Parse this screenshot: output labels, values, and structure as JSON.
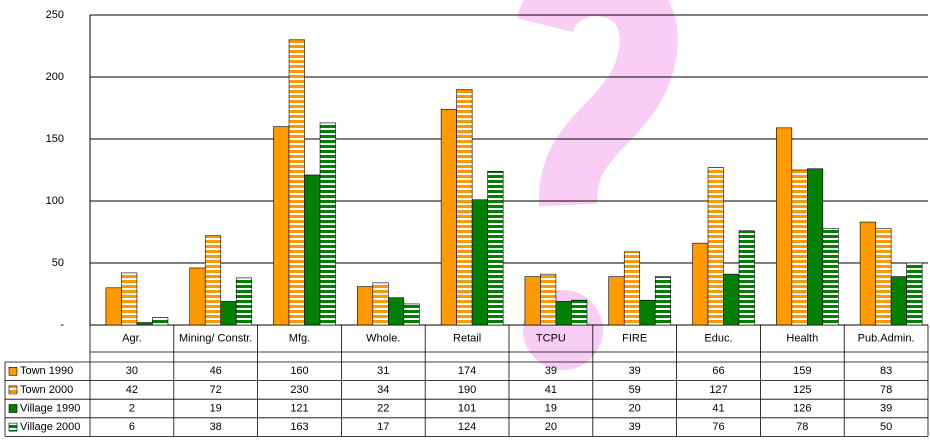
{
  "chart_data": {
    "type": "bar",
    "categories": [
      "Agr.",
      "Mining/ Constr.",
      "Mfg.",
      "Whole.",
      "Retail",
      "TCPU",
      "FIRE",
      "Educ.",
      "Health",
      "Pub.Admin."
    ],
    "series": [
      {
        "name": "Town 1990",
        "color": "#ff9900",
        "hatch": false,
        "values": [
          30,
          46,
          160,
          31,
          174,
          39,
          39,
          66,
          159,
          83
        ]
      },
      {
        "name": "Town 2000",
        "color": "#ff9900",
        "hatch": true,
        "values": [
          42,
          72,
          230,
          34,
          190,
          41,
          59,
          127,
          125,
          78
        ]
      },
      {
        "name": "Village 1990",
        "color": "#008000",
        "hatch": false,
        "values": [
          2,
          19,
          121,
          22,
          101,
          19,
          20,
          41,
          126,
          39
        ]
      },
      {
        "name": "Village 2000",
        "color": "#008000",
        "hatch": true,
        "values": [
          6,
          38,
          163,
          17,
          124,
          20,
          39,
          76,
          78,
          50
        ]
      }
    ],
    "ylim": [
      0,
      250
    ],
    "yticks": [
      {
        "value": 0,
        "label": "-"
      },
      50,
      100,
      150,
      200,
      250
    ],
    "grid": true
  }
}
